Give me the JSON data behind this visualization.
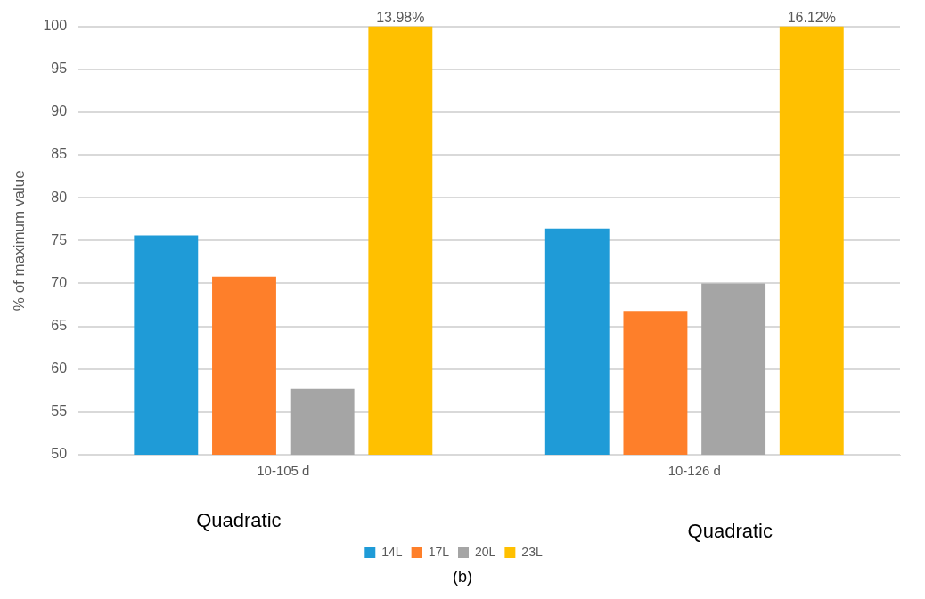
{
  "chart_data": {
    "type": "bar",
    "ylabel": "% of maximum value",
    "categories": [
      "10-105 d",
      "10-126 d"
    ],
    "series": [
      {
        "name": "14L",
        "color": "#1f9bd7",
        "values": [
          75.6,
          76.4
        ]
      },
      {
        "name": "17L",
        "color": "#fe7f2a",
        "values": [
          70.8,
          66.8
        ]
      },
      {
        "name": "20L",
        "color": "#a5a5a5",
        "values": [
          57.7,
          70
        ]
      },
      {
        "name": "23L",
        "color": "#ffc000",
        "values": [
          100,
          100
        ]
      }
    ],
    "ylim": [
      50,
      100
    ],
    "yticks": [
      50,
      55,
      60,
      65,
      70,
      75,
      80,
      85,
      90,
      95,
      100
    ],
    "grid": "y",
    "legend": "bottom",
    "annotations": [
      "Quadratic",
      "Quadratic",
      "(b)",
      "13.98%",
      "16.12%"
    ]
  }
}
